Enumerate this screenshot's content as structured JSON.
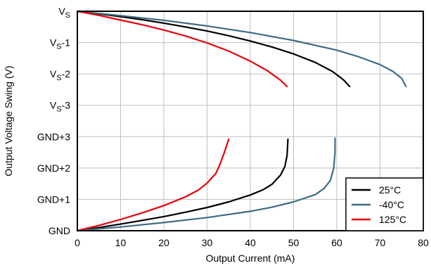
{
  "chart_data": {
    "type": "line",
    "xlabel": "Output Current (mA)",
    "ylabel": "Output Voltage Swing (V)",
    "xlim": [
      0,
      80
    ],
    "ylim": [
      0,
      7
    ],
    "x_ticks": [
      "0",
      "10",
      "20",
      "30",
      "40",
      "50",
      "60",
      "70",
      "80"
    ],
    "y_ticks": [
      {
        "value": 0,
        "main": "GND",
        "sub": "",
        "suffix": ""
      },
      {
        "value": 1,
        "main": "GND+1",
        "sub": "",
        "suffix": ""
      },
      {
        "value": 2,
        "main": "GND+2",
        "sub": "",
        "suffix": ""
      },
      {
        "value": 3,
        "main": "GND+3",
        "sub": "",
        "suffix": ""
      },
      {
        "value": 4,
        "main": "V",
        "sub": "S",
        "suffix": "-3"
      },
      {
        "value": 5,
        "main": "V",
        "sub": "S",
        "suffix": "-2"
      },
      {
        "value": 6,
        "main": "V",
        "sub": "S",
        "suffix": "-1"
      },
      {
        "value": 7,
        "main": "V",
        "sub": "S",
        "suffix": ""
      }
    ],
    "grid": true,
    "legend_position": "bottom-right",
    "series": [
      {
        "name": "25°C",
        "color": "#000000",
        "curves": [
          [
            [
              0,
              7.0
            ],
            [
              5,
              6.92
            ],
            [
              10,
              6.83
            ],
            [
              15,
              6.73
            ],
            [
              20,
              6.62
            ],
            [
              25,
              6.5
            ],
            [
              30,
              6.37
            ],
            [
              35,
              6.22
            ],
            [
              40,
              6.05
            ],
            [
              45,
              5.86
            ],
            [
              50,
              5.64
            ],
            [
              55,
              5.37
            ],
            [
              59,
              5.08
            ],
            [
              61.5,
              4.82
            ],
            [
              63,
              4.6
            ]
          ],
          [
            [
              0,
              0.0
            ],
            [
              5,
              0.1
            ],
            [
              10,
              0.21
            ],
            [
              15,
              0.33
            ],
            [
              20,
              0.45
            ],
            [
              25,
              0.59
            ],
            [
              30,
              0.74
            ],
            [
              35,
              0.92
            ],
            [
              40,
              1.14
            ],
            [
              43,
              1.31
            ],
            [
              45,
              1.48
            ],
            [
              47,
              1.78
            ],
            [
              48,
              2.05
            ],
            [
              48.5,
              2.4
            ],
            [
              48.7,
              2.92
            ]
          ]
        ]
      },
      {
        "name": "-40°C",
        "color": "#3f6d82",
        "curves": [
          [
            [
              0,
              7.0
            ],
            [
              10,
              6.86
            ],
            [
              20,
              6.71
            ],
            [
              30,
              6.53
            ],
            [
              40,
              6.32
            ],
            [
              50,
              6.07
            ],
            [
              60,
              5.76
            ],
            [
              65,
              5.55
            ],
            [
              70,
              5.3
            ],
            [
              73,
              5.08
            ],
            [
              75,
              4.86
            ],
            [
              76,
              4.6
            ]
          ],
          [
            [
              0,
              0.0
            ],
            [
              10,
              0.12
            ],
            [
              20,
              0.26
            ],
            [
              30,
              0.42
            ],
            [
              40,
              0.62
            ],
            [
              45,
              0.75
            ],
            [
              50,
              0.92
            ],
            [
              55,
              1.15
            ],
            [
              57,
              1.34
            ],
            [
              58.5,
              1.6
            ],
            [
              59.3,
              2.0
            ],
            [
              59.6,
              2.5
            ],
            [
              59.6,
              2.95
            ]
          ]
        ]
      },
      {
        "name": "125°C",
        "color": "#e8000b",
        "curves": [
          [
            [
              0,
              7.0
            ],
            [
              5,
              6.87
            ],
            [
              10,
              6.72
            ],
            [
              15,
              6.57
            ],
            [
              20,
              6.4
            ],
            [
              25,
              6.21
            ],
            [
              30,
              5.99
            ],
            [
              35,
              5.73
            ],
            [
              40,
              5.41
            ],
            [
              44,
              5.1
            ],
            [
              47,
              4.8
            ],
            [
              48.5,
              4.6
            ]
          ],
          [
            [
              0,
              0.0
            ],
            [
              5,
              0.17
            ],
            [
              10,
              0.36
            ],
            [
              15,
              0.57
            ],
            [
              20,
              0.8
            ],
            [
              25,
              1.08
            ],
            [
              28,
              1.3
            ],
            [
              30,
              1.52
            ],
            [
              32,
              1.82
            ],
            [
              33,
              2.12
            ],
            [
              34,
              2.5
            ],
            [
              35,
              2.92
            ]
          ]
        ]
      }
    ]
  }
}
